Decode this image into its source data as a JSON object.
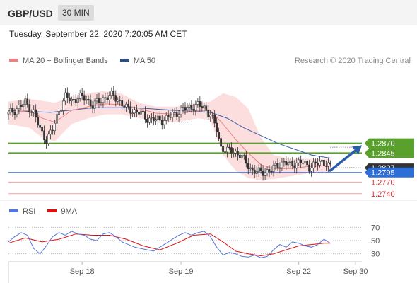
{
  "header": {
    "symbol": "GBP/USD",
    "timeframe": "30 MIN"
  },
  "datetime": "Tuesday, September 22, 2020 7:20:05 AM CET",
  "copyright": "Research © 2020 Trading Central",
  "legend_main": [
    {
      "label": "MA 20 + Bollinger Bands",
      "color": "#f08080"
    },
    {
      "label": "MA 50",
      "color": "#2a4b8d"
    }
  ],
  "legend_rsi": [
    {
      "label": "RSI",
      "color": "#5577dd"
    },
    {
      "label": "9MA",
      "color": "#dd1111"
    }
  ],
  "chart_data": [
    {
      "type": "line",
      "title": "",
      "x_labels": [
        "Sep 18",
        "Sep 19",
        "Sep 22",
        "Sep 30"
      ],
      "ylim": [
        1.2725,
        1.3065
      ],
      "price_levels": [
        {
          "value": 1.287,
          "label": "1.2870",
          "kind": "resistance",
          "color": "#5aa02c"
        },
        {
          "value": 1.2845,
          "label": "1.2845",
          "kind": "resistance",
          "color": "#5aa02c"
        },
        {
          "value": 1.2807,
          "label": "1.2807",
          "kind": "last",
          "color": "#333333"
        },
        {
          "value": 1.2795,
          "label": "1.2795",
          "kind": "pivot",
          "color": "#2d6fd6"
        },
        {
          "value": 1.277,
          "label": "1.2770",
          "kind": "support",
          "color": "#e05050"
        },
        {
          "value": 1.274,
          "label": "1.2740",
          "kind": "support",
          "color": "#e05050"
        }
      ],
      "price_path": [
        [
          0,
          1.2946
        ],
        [
          4,
          1.296
        ],
        [
          8,
          1.2975
        ],
        [
          12,
          1.295
        ],
        [
          15,
          1.2905
        ],
        [
          18,
          1.288
        ],
        [
          21,
          1.2905
        ],
        [
          24,
          1.2955
        ],
        [
          27,
          1.299
        ],
        [
          30,
          1.298
        ],
        [
          33,
          1.299
        ],
        [
          37,
          1.2985
        ],
        [
          40,
          1.2968
        ],
        [
          43,
          1.2978
        ],
        [
          46,
          1.299
        ],
        [
          50,
          1.2993
        ],
        [
          53,
          1.2978
        ],
        [
          56,
          1.296
        ],
        [
          59,
          1.2955
        ],
        [
          62,
          1.295
        ],
        [
          66,
          1.2935
        ],
        [
          70,
          1.293
        ],
        [
          74,
          1.2932
        ],
        [
          77,
          1.294
        ],
        [
          80,
          1.295
        ],
        [
          84,
          1.296
        ],
        [
          87,
          1.2965
        ],
        [
          90,
          1.2968
        ],
        [
          93,
          1.2962
        ],
        [
          96,
          1.2945
        ],
        [
          99,
          1.2905
        ],
        [
          101,
          1.286
        ],
        [
          104,
          1.285
        ],
        [
          107,
          1.285
        ],
        [
          110,
          1.284
        ],
        [
          113,
          1.282
        ],
        [
          116,
          1.28
        ],
        [
          119,
          1.2795
        ],
        [
          122,
          1.2798
        ],
        [
          125,
          1.28
        ],
        [
          128,
          1.2815
        ],
        [
          131,
          1.282
        ],
        [
          134,
          1.2815
        ],
        [
          137,
          1.282
        ],
        [
          140,
          1.282
        ],
        [
          143,
          1.281
        ],
        [
          146,
          1.2815
        ],
        [
          149,
          1.2822
        ],
        [
          151,
          1.282
        ],
        [
          153,
          1.2807
        ]
      ],
      "ma20_path": [
        [
          0,
          1.295
        ],
        [
          10,
          1.2955
        ],
        [
          16,
          1.2935
        ],
        [
          22,
          1.2925
        ],
        [
          30,
          1.2955
        ],
        [
          38,
          1.2965
        ],
        [
          46,
          1.2972
        ],
        [
          54,
          1.297
        ],
        [
          62,
          1.296
        ],
        [
          70,
          1.2948
        ],
        [
          80,
          1.2945
        ],
        [
          90,
          1.2955
        ],
        [
          96,
          1.2955
        ],
        [
          102,
          1.292
        ],
        [
          108,
          1.288
        ],
        [
          114,
          1.2845
        ],
        [
          120,
          1.2815
        ],
        [
          126,
          1.2805
        ],
        [
          134,
          1.2805
        ],
        [
          142,
          1.281
        ],
        [
          150,
          1.2812
        ],
        [
          153,
          1.2812
        ]
      ],
      "bb_upper": [
        [
          0,
          1.2978
        ],
        [
          10,
          1.2985
        ],
        [
          16,
          1.298
        ],
        [
          22,
          1.2975
        ],
        [
          30,
          1.299
        ],
        [
          38,
          1.3
        ],
        [
          46,
          1.3005
        ],
        [
          54,
          1.2998
        ],
        [
          62,
          1.2975
        ],
        [
          70,
          1.2965
        ],
        [
          80,
          1.2965
        ],
        [
          90,
          1.2975
        ],
        [
          96,
          1.2978
        ],
        [
          102,
          1.3
        ],
        [
          108,
          1.299
        ],
        [
          114,
          1.296
        ],
        [
          120,
          1.2885
        ],
        [
          126,
          1.284
        ],
        [
          134,
          1.283
        ],
        [
          142,
          1.283
        ],
        [
          150,
          1.283
        ],
        [
          153,
          1.283
        ]
      ],
      "bb_lower": [
        [
          0,
          1.292
        ],
        [
          10,
          1.291
        ],
        [
          16,
          1.2885
        ],
        [
          22,
          1.2875
        ],
        [
          30,
          1.292
        ],
        [
          38,
          1.2935
        ],
        [
          46,
          1.2945
        ],
        [
          54,
          1.2945
        ],
        [
          62,
          1.2935
        ],
        [
          70,
          1.2928
        ],
        [
          80,
          1.2925
        ],
        [
          90,
          1.2935
        ],
        [
          96,
          1.293
        ],
        [
          102,
          1.284
        ],
        [
          108,
          1.28
        ],
        [
          114,
          1.278
        ],
        [
          120,
          1.2775
        ],
        [
          126,
          1.2778
        ],
        [
          134,
          1.2785
        ],
        [
          142,
          1.2792
        ],
        [
          150,
          1.2795
        ],
        [
          153,
          1.2795
        ]
      ],
      "ma50_path": [
        [
          0,
          1.2955
        ],
        [
          20,
          1.295
        ],
        [
          40,
          1.2962
        ],
        [
          60,
          1.2962
        ],
        [
          80,
          1.2955
        ],
        [
          96,
          1.295
        ],
        [
          104,
          1.2935
        ],
        [
          112,
          1.291
        ],
        [
          120,
          1.289
        ],
        [
          128,
          1.287
        ],
        [
          136,
          1.2855
        ],
        [
          144,
          1.284
        ],
        [
          153,
          1.2832
        ]
      ],
      "forecast_arrow": {
        "from": [
          153,
          1.28
        ],
        "to": [
          168,
          1.2865
        ]
      },
      "dotted_levels": [
        {
          "value": 1.2925,
          "x_from": 78,
          "x_to": 86
        },
        {
          "value": 1.286,
          "x_from": 153,
          "x_to": 168
        },
        {
          "value": 1.2807,
          "x_from": 153,
          "x_to": 168
        }
      ]
    },
    {
      "type": "line",
      "title": "",
      "ylim": [
        20,
        80
      ],
      "y_ticks": [
        70,
        50,
        30
      ],
      "rsi_path": [
        [
          0,
          48
        ],
        [
          3,
          56
        ],
        [
          6,
          62
        ],
        [
          9,
          58
        ],
        [
          12,
          38
        ],
        [
          15,
          30
        ],
        [
          18,
          42
        ],
        [
          21,
          56
        ],
        [
          24,
          62
        ],
        [
          27,
          58
        ],
        [
          30,
          64
        ],
        [
          33,
          60
        ],
        [
          36,
          58
        ],
        [
          39,
          52
        ],
        [
          42,
          50
        ],
        [
          45,
          60
        ],
        [
          48,
          62
        ],
        [
          51,
          56
        ],
        [
          54,
          48
        ],
        [
          57,
          44
        ],
        [
          60,
          40
        ],
        [
          63,
          38
        ],
        [
          66,
          36
        ],
        [
          69,
          34
        ],
        [
          72,
          40
        ],
        [
          75,
          46
        ],
        [
          78,
          52
        ],
        [
          81,
          58
        ],
        [
          84,
          62
        ],
        [
          87,
          58
        ],
        [
          90,
          62
        ],
        [
          93,
          64
        ],
        [
          96,
          56
        ],
        [
          99,
          40
        ],
        [
          102,
          28
        ],
        [
          105,
          32
        ],
        [
          108,
          30
        ],
        [
          111,
          26
        ],
        [
          114,
          25
        ],
        [
          117,
          28
        ],
        [
          120,
          24
        ],
        [
          123,
          26
        ],
        [
          126,
          36
        ],
        [
          129,
          44
        ],
        [
          132,
          40
        ],
        [
          135,
          48
        ],
        [
          138,
          46
        ],
        [
          141,
          42
        ],
        [
          144,
          40
        ],
        [
          147,
          44
        ],
        [
          150,
          52
        ],
        [
          153,
          46
        ]
      ],
      "ma9_path": [
        [
          0,
          46
        ],
        [
          8,
          54
        ],
        [
          16,
          48
        ],
        [
          24,
          52
        ],
        [
          32,
          60
        ],
        [
          40,
          58
        ],
        [
          48,
          58
        ],
        [
          56,
          52
        ],
        [
          64,
          42
        ],
        [
          72,
          36
        ],
        [
          80,
          46
        ],
        [
          88,
          58
        ],
        [
          96,
          60
        ],
        [
          102,
          48
        ],
        [
          108,
          34
        ],
        [
          114,
          30
        ],
        [
          120,
          27
        ],
        [
          126,
          30
        ],
        [
          132,
          36
        ],
        [
          138,
          42
        ],
        [
          144,
          44
        ],
        [
          150,
          46
        ],
        [
          153,
          46
        ]
      ]
    }
  ]
}
